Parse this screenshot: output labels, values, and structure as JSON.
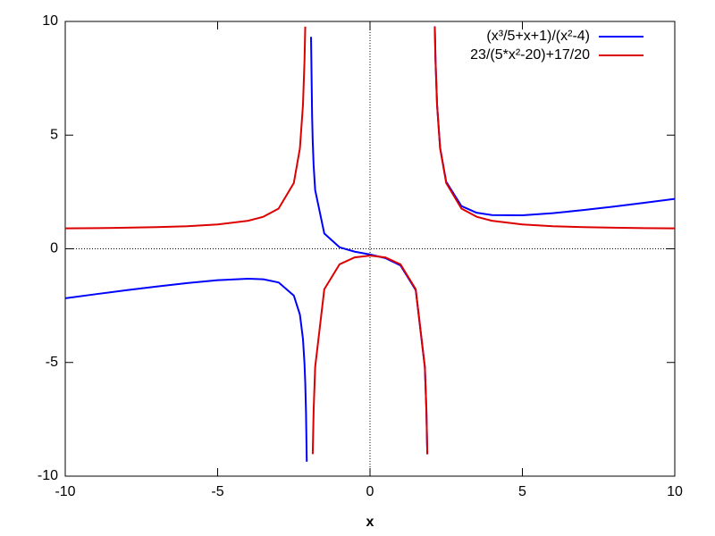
{
  "chart_data": {
    "type": "line",
    "xlabel": "x",
    "x": [
      -10,
      -9,
      -8,
      -7,
      -6,
      -5,
      -4,
      -3.5,
      -3,
      -2.5,
      -2.3,
      -2.2,
      -2.15,
      -2.125,
      -2.1,
      -2.075,
      -2,
      -1.935,
      -1.9,
      -1.88,
      -1.85,
      -1.8,
      -1.5,
      -1,
      -0.5,
      0,
      0.5,
      1,
      1.5,
      1.8,
      1.85,
      1.88,
      2,
      2.125,
      2.15,
      2.2,
      2.3,
      2.5,
      3,
      3.5,
      4,
      5,
      6,
      7,
      8,
      9,
      10
    ],
    "series": [
      {
        "name": "(x³/5+x+1)/(x²-4)",
        "color": "#0000ff",
        "values": [
          -2.177,
          -1.997,
          -1.823,
          -1.658,
          -1.506,
          -1.381,
          -1.317,
          -1.342,
          -1.48,
          -2.056,
          -2.894,
          -3.964,
          -5.04,
          -5.904,
          -7.2,
          -9.364,
          null,
          9.321,
          5.825,
          4.744,
          3.665,
          2.587,
          0.671,
          0.067,
          -0.127,
          -0.25,
          -0.407,
          -0.733,
          -1.814,
          -5.219,
          -7.128,
          -9.04,
          null,
          9.783,
          8.253,
          6.345,
          4.444,
          2.944,
          1.88,
          1.585,
          1.483,
          1.476,
          1.569,
          1.702,
          1.857,
          2.023,
          2.198
        ]
      },
      {
        "name": "23/(5*x²-20)+17/20",
        "color": "#dd0000",
        "values": [
          0.898,
          0.91,
          0.927,
          0.952,
          0.994,
          1.069,
          1.233,
          1.408,
          1.77,
          2.894,
          4.416,
          6.326,
          8.24,
          9.771,
          null,
          null,
          null,
          null,
          null,
          -9.03,
          -7.115,
          -5.203,
          -1.779,
          -0.683,
          -0.377,
          -0.3,
          -0.377,
          -0.683,
          -1.779,
          -5.203,
          -7.115,
          -9.03,
          null,
          9.771,
          8.24,
          6.326,
          4.416,
          2.894,
          1.77,
          1.408,
          1.233,
          1.069,
          0.994,
          0.952,
          0.927,
          0.91,
          0.898
        ]
      }
    ],
    "xlim": [
      -10,
      10
    ],
    "ylim": [
      -10,
      10
    ],
    "xticks": [
      -10,
      -5,
      0,
      5,
      10
    ],
    "yticks": [
      -10,
      -5,
      0,
      5,
      10
    ],
    "zeroaxis": true,
    "legend": "top-right"
  }
}
